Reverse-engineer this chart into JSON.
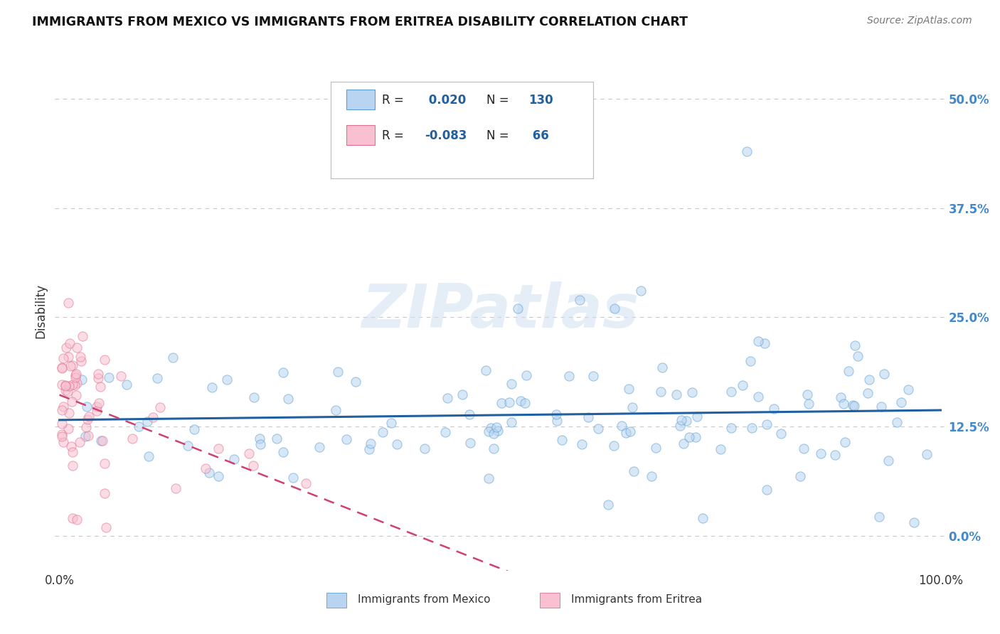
{
  "title": "IMMIGRANTS FROM MEXICO VS IMMIGRANTS FROM ERITREA DISABILITY CORRELATION CHART",
  "source": "Source: ZipAtlas.com",
  "ylabel": "Disability",
  "watermark": "ZIPatlas",
  "legend_mexico": {
    "R": 0.02,
    "N": 130,
    "color": "#b8d4f0",
    "edge_color": "#5a9fd4",
    "line_color": "#2060a0"
  },
  "legend_eritrea": {
    "R": -0.083,
    "N": 66,
    "color": "#f8c0d0",
    "edge_color": "#e07090",
    "line_color": "#d04070"
  },
  "background_color": "#ffffff",
  "grid_color": "#c8c8c8",
  "title_fontsize": 13,
  "scatter_alpha": 0.55,
  "scatter_size": 90,
  "ytick_color": "#4488cc"
}
